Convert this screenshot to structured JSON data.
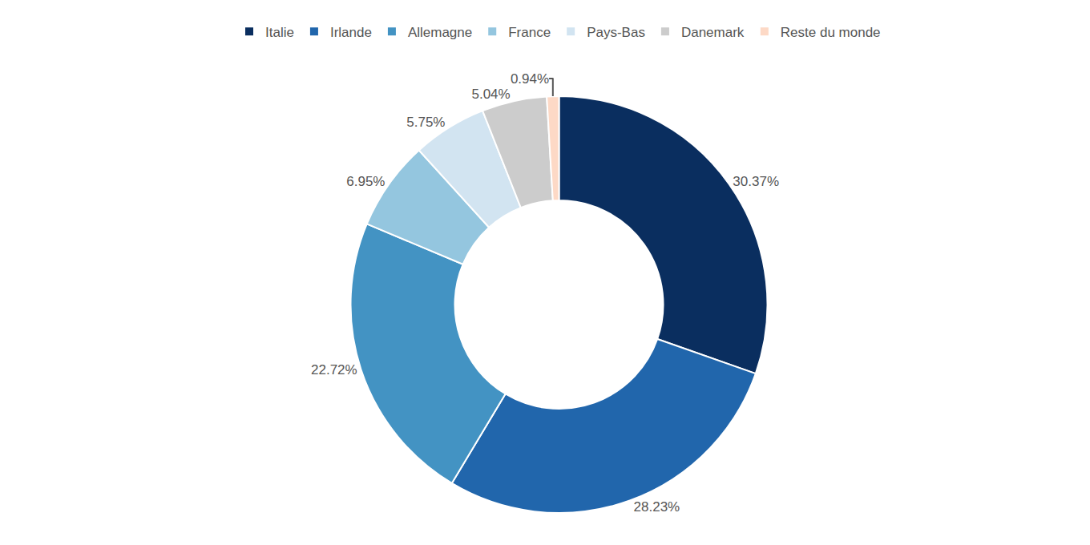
{
  "chart_data": {
    "type": "pie",
    "categories": [
      "Italie",
      "Irlande",
      "Allemagne",
      "France",
      "Pays-Bas",
      "Danemark",
      "Reste du monde"
    ],
    "values": [
      30.37,
      28.23,
      22.72,
      6.95,
      5.75,
      5.04,
      0.94
    ],
    "value_labels": [
      "30.37%",
      "28.23%",
      "22.72%",
      "6.95%",
      "5.75%",
      "5.04%",
      "0.94%"
    ],
    "colors": [
      "#0a2e5f",
      "#2166ac",
      "#4393c3",
      "#94c6df",
      "#d2e4f1",
      "#cccccc",
      "#fdd9c6"
    ],
    "data_labels": true,
    "legend": "top"
  }
}
